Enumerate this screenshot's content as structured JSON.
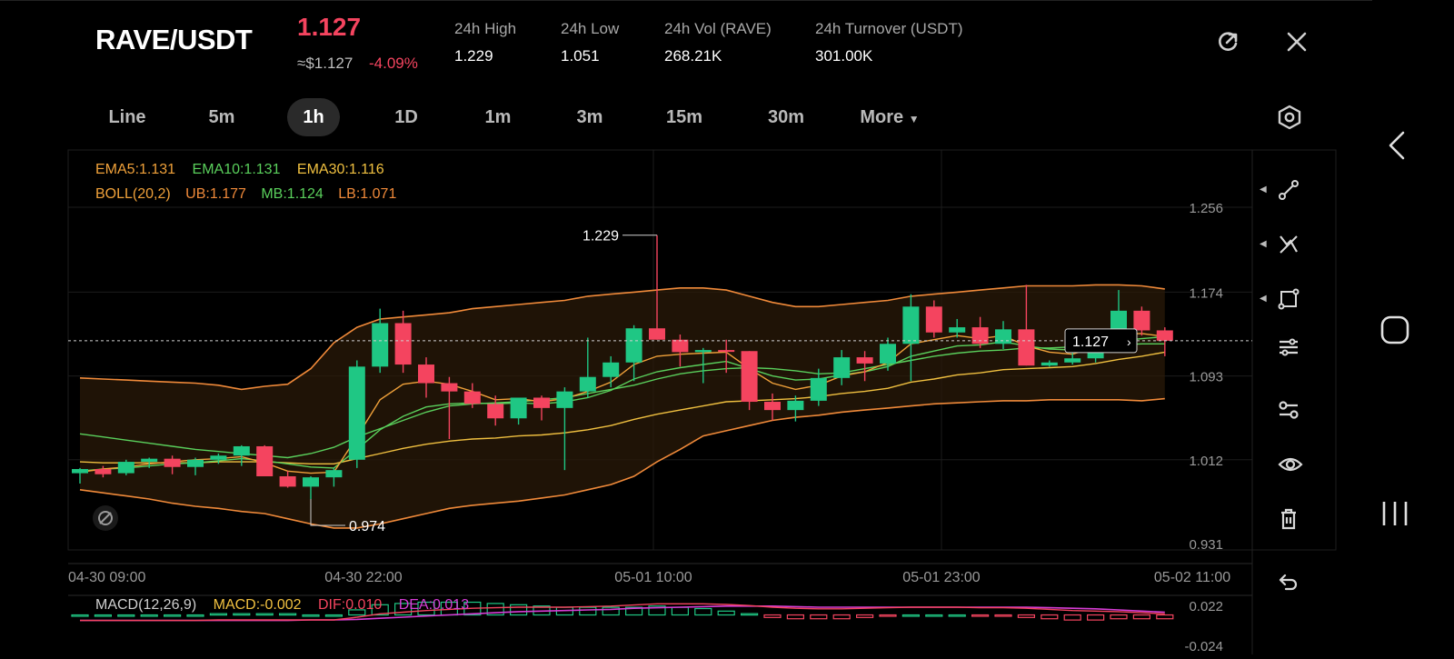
{
  "header": {
    "pair": "RAVE/USDT",
    "price": "1.127",
    "approx_price": "≈$1.127",
    "change": "-4.09%",
    "stats": [
      {
        "label": "24h   High",
        "value": "1.229"
      },
      {
        "label": "24h   Low",
        "value": "1.051"
      },
      {
        "label": "24h   Vol (RAVE)",
        "value": "268.21K"
      },
      {
        "label": "24h   Turnover (USDT)",
        "value": "301.00K"
      }
    ]
  },
  "intervals": [
    "Line",
    "5m",
    "1h",
    "1D",
    "1m",
    "3m",
    "15m",
    "30m",
    "More"
  ],
  "active_interval": "1h",
  "indicators": {
    "ema5": "EMA5:1.131",
    "ema10": "EMA10:1.131",
    "ema30": "EMA30:1.116",
    "boll": "BOLL(20,2)",
    "ub": "UB:1.177",
    "mb": "MB:1.124",
    "lb": "LB:1.071",
    "macd": "MACD(12,26,9)",
    "macd_val": "MACD:-0.002",
    "dif": "DIF:0.010",
    "dea": "DEA:0.013"
  },
  "axis": {
    "price_ticks": [
      "1.256",
      "1.174",
      "1.093",
      "1.012",
      "0.931"
    ],
    "time_ticks": [
      "04-30 09:00",
      "04-30 22:00",
      "05-01 10:00",
      "05-01 23:00",
      "05-02 11:00"
    ],
    "macd_ticks": [
      "0.022",
      "-0.024"
    ]
  },
  "annotations": {
    "high": "1.229",
    "low": "0.974",
    "last": "1.127"
  },
  "colors": {
    "up": "#1fc784",
    "down": "#f4445f",
    "ema5": "#f0a13a",
    "ema10": "#5ad05c",
    "ema30": "#f0c040",
    "boll": "#f08a3a",
    "dea": "#d63dd6"
  },
  "chart_data": {
    "type": "candlestick",
    "interval": "1h",
    "candles": [
      [
        0.999,
        1.004,
        0.989,
        1.003
      ],
      [
        1.003,
        1.006,
        0.995,
        0.998
      ],
      [
        0.999,
        1.012,
        0.997,
        1.01
      ],
      [
        1.01,
        1.014,
        1.004,
        1.013
      ],
      [
        1.013,
        1.016,
        0.998,
        1.005
      ],
      [
        1.005,
        1.014,
        0.997,
        1.012
      ],
      [
        1.012,
        1.018,
        1.008,
        1.016
      ],
      [
        1.016,
        1.026,
        1.006,
        1.025
      ],
      [
        1.025,
        1.026,
        0.996,
        0.996
      ],
      [
        0.996,
        1.001,
        0.985,
        0.986
      ],
      [
        0.986,
        0.996,
        0.974,
        0.995
      ],
      [
        0.995,
        1.004,
        0.986,
        1.002
      ],
      [
        1.012,
        1.108,
        1.004,
        1.102
      ],
      [
        1.102,
        1.158,
        1.096,
        1.144
      ],
      [
        1.144,
        1.156,
        1.096,
        1.104
      ],
      [
        1.104,
        1.111,
        1.072,
        1.086
      ],
      [
        1.086,
        1.092,
        1.032,
        1.078
      ],
      [
        1.078,
        1.086,
        1.062,
        1.066
      ],
      [
        1.066,
        1.074,
        1.045,
        1.052
      ],
      [
        1.052,
        1.071,
        1.046,
        1.072
      ],
      [
        1.072,
        1.074,
        1.05,
        1.062
      ],
      [
        1.062,
        1.082,
        1.002,
        1.078
      ],
      [
        1.078,
        1.13,
        1.072,
        1.092
      ],
      [
        1.092,
        1.112,
        1.082,
        1.106
      ],
      [
        1.106,
        1.142,
        1.088,
        1.139
      ],
      [
        1.139,
        1.229,
        1.128,
        1.128
      ],
      [
        1.128,
        1.133,
        1.102,
        1.116
      ],
      [
        1.116,
        1.12,
        1.086,
        1.118
      ],
      [
        1.118,
        1.128,
        1.096,
        1.117
      ],
      [
        1.117,
        1.117,
        1.06,
        1.068
      ],
      [
        1.068,
        1.076,
        1.05,
        1.06
      ],
      [
        1.06,
        1.074,
        1.049,
        1.069
      ],
      [
        1.069,
        1.1,
        1.064,
        1.091
      ],
      [
        1.091,
        1.118,
        1.084,
        1.111
      ],
      [
        1.111,
        1.117,
        1.088,
        1.105
      ],
      [
        1.105,
        1.13,
        1.098,
        1.124
      ],
      [
        1.124,
        1.172,
        1.088,
        1.16
      ],
      [
        1.16,
        1.166,
        1.13,
        1.135
      ],
      [
        1.135,
        1.148,
        1.13,
        1.14
      ],
      [
        1.14,
        1.15,
        1.12,
        1.124
      ],
      [
        1.124,
        1.146,
        1.119,
        1.138
      ],
      [
        1.138,
        1.181,
        1.103,
        1.103
      ],
      [
        1.103,
        1.108,
        1.102,
        1.106
      ],
      [
        1.106,
        1.124,
        1.104,
        1.11
      ],
      [
        1.11,
        1.135,
        1.106,
        1.135
      ],
      [
        1.135,
        1.176,
        1.132,
        1.156
      ],
      [
        1.156,
        1.16,
        1.132,
        1.137
      ],
      [
        1.137,
        1.14,
        1.112,
        1.127
      ]
    ],
    "ema5": [
      1.0,
      1.003,
      1.005,
      1.008,
      1.01,
      1.012,
      1.013,
      1.015,
      1.009,
      1.001,
      0.999,
      1.0,
      1.034,
      1.07,
      1.085,
      1.088,
      1.085,
      1.078,
      1.07,
      1.071,
      1.068,
      1.071,
      1.078,
      1.087,
      1.104,
      1.112,
      1.114,
      1.115,
      1.116,
      1.1,
      1.086,
      1.08,
      1.084,
      1.093,
      1.097,
      1.106,
      1.124,
      1.128,
      1.132,
      1.129,
      1.132,
      1.122,
      1.116,
      1.114,
      1.121,
      1.133,
      1.134,
      1.131
    ],
    "ema10": [
      1.001,
      1.003,
      1.004,
      1.006,
      1.008,
      1.009,
      1.011,
      1.013,
      1.011,
      1.008,
      1.005,
      1.004,
      1.022,
      1.041,
      1.054,
      1.063,
      1.066,
      1.067,
      1.066,
      1.067,
      1.066,
      1.068,
      1.072,
      1.079,
      1.09,
      1.097,
      1.101,
      1.104,
      1.107,
      1.1,
      1.093,
      1.089,
      1.09,
      1.094,
      1.097,
      1.102,
      1.112,
      1.117,
      1.122,
      1.123,
      1.126,
      1.122,
      1.119,
      1.118,
      1.121,
      1.127,
      1.129,
      1.131
    ],
    "ema30": [
      1.01,
      1.009,
      1.009,
      1.009,
      1.009,
      1.009,
      1.01,
      1.01,
      1.01,
      1.009,
      1.008,
      1.008,
      1.013,
      1.018,
      1.023,
      1.027,
      1.03,
      1.032,
      1.033,
      1.035,
      1.036,
      1.038,
      1.041,
      1.045,
      1.051,
      1.056,
      1.06,
      1.064,
      1.068,
      1.069,
      1.07,
      1.071,
      1.073,
      1.076,
      1.078,
      1.081,
      1.087,
      1.09,
      1.094,
      1.096,
      1.099,
      1.1,
      1.101,
      1.102,
      1.105,
      1.109,
      1.112,
      1.116
    ],
    "boll_ub": [
      1.091,
      1.09,
      1.089,
      1.088,
      1.087,
      1.086,
      1.084,
      1.08,
      1.083,
      1.085,
      1.1,
      1.125,
      1.14,
      1.148,
      1.15,
      1.152,
      1.154,
      1.158,
      1.16,
      1.162,
      1.164,
      1.166,
      1.17,
      1.172,
      1.174,
      1.176,
      1.178,
      1.178,
      1.176,
      1.17,
      1.164,
      1.16,
      1.16,
      1.162,
      1.164,
      1.166,
      1.17,
      1.172,
      1.174,
      1.176,
      1.178,
      1.18,
      1.18,
      1.18,
      1.181,
      1.181,
      1.18,
      1.177
    ],
    "boll_mb": [
      1.037,
      1.034,
      1.031,
      1.028,
      1.025,
      1.022,
      1.02,
      1.018,
      1.016,
      1.014,
      1.018,
      1.024,
      1.034,
      1.042,
      1.05,
      1.058,
      1.064,
      1.066,
      1.067,
      1.068,
      1.07,
      1.072,
      1.076,
      1.08,
      1.084,
      1.09,
      1.095,
      1.098,
      1.1,
      1.101,
      1.1,
      1.098,
      1.095,
      1.096,
      1.1,
      1.104,
      1.108,
      1.112,
      1.115,
      1.117,
      1.118,
      1.12,
      1.12,
      1.121,
      1.122,
      1.123,
      1.124,
      1.124
    ],
    "boll_lb": [
      0.983,
      0.98,
      0.977,
      0.974,
      0.97,
      0.967,
      0.965,
      0.962,
      0.96,
      0.955,
      0.95,
      0.946,
      0.946,
      0.95,
      0.955,
      0.96,
      0.965,
      0.968,
      0.97,
      0.972,
      0.975,
      0.978,
      0.983,
      0.988,
      0.996,
      1.01,
      1.022,
      1.035,
      1.04,
      1.045,
      1.05,
      1.053,
      1.055,
      1.058,
      1.06,
      1.062,
      1.064,
      1.066,
      1.067,
      1.068,
      1.069,
      1.069,
      1.07,
      1.07,
      1.07,
      1.07,
      1.069,
      1.071
    ],
    "macd_dif": [
      -0.002,
      -0.002,
      -0.002,
      -0.002,
      -0.002,
      -0.002,
      -0.001,
      -0.001,
      -0.001,
      -0.001,
      -0.001,
      -0.001,
      0.004,
      0.01,
      0.013,
      0.016,
      0.018,
      0.02,
      0.021,
      0.022,
      0.022,
      0.022,
      0.023,
      0.024,
      0.026,
      0.028,
      0.028,
      0.028,
      0.027,
      0.025,
      0.022,
      0.02,
      0.019,
      0.019,
      0.02,
      0.021,
      0.022,
      0.022,
      0.022,
      0.021,
      0.021,
      0.02,
      0.018,
      0.016,
      0.015,
      0.014,
      0.012,
      0.01
    ],
    "macd_dea": [
      -0.002,
      -0.002,
      -0.002,
      -0.002,
      -0.002,
      -0.002,
      -0.002,
      -0.002,
      -0.002,
      -0.002,
      -0.001,
      -0.001,
      0.0,
      0.002,
      0.004,
      0.006,
      0.008,
      0.01,
      0.012,
      0.014,
      0.015,
      0.016,
      0.017,
      0.018,
      0.02,
      0.021,
      0.022,
      0.023,
      0.024,
      0.024,
      0.024,
      0.023,
      0.022,
      0.022,
      0.022,
      0.022,
      0.022,
      0.022,
      0.022,
      0.022,
      0.022,
      0.022,
      0.021,
      0.02,
      0.019,
      0.017,
      0.015,
      0.013
    ],
    "price_range": [
      0.931,
      1.256
    ],
    "macd_range": [
      -0.024,
      0.022
    ]
  }
}
